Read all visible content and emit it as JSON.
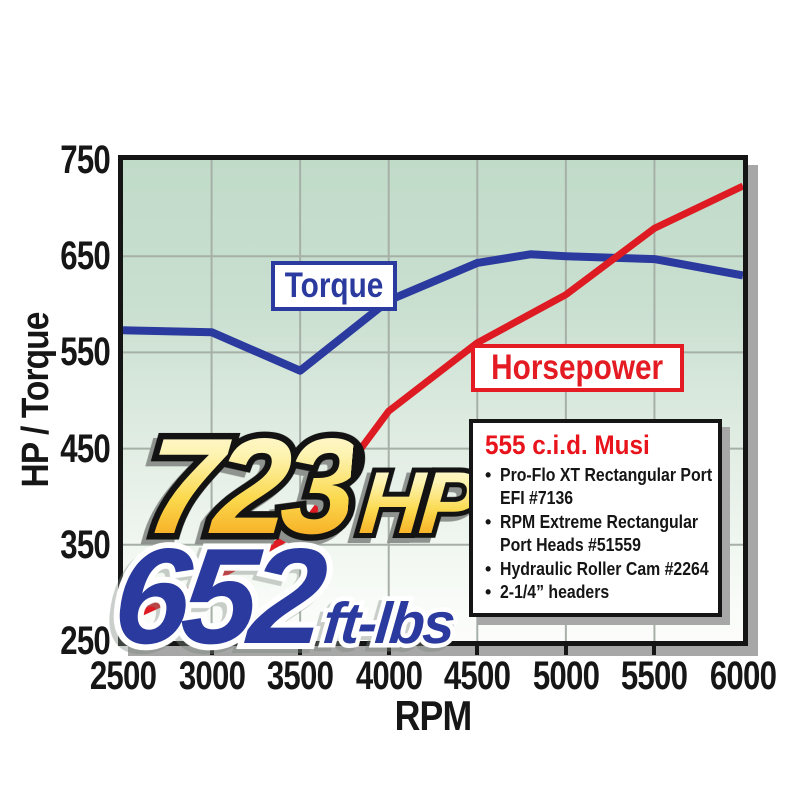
{
  "chart_data": {
    "type": "line",
    "title": "",
    "xlabel": "RPM",
    "ylabel": "HP / Torque",
    "xlim": [
      2500,
      6000
    ],
    "ylim": [
      250,
      750
    ],
    "x_ticks": [
      2500,
      3000,
      3500,
      4000,
      4500,
      5000,
      5500,
      6000
    ],
    "y_ticks": [
      750,
      650,
      550,
      450,
      350,
      250
    ],
    "grid": true,
    "legend_position": "inline-label-boxes",
    "series": [
      {
        "name": "Torque",
        "color": "#2b3a9e",
        "units": "ft-lbs",
        "points": [
          [
            2500,
            573
          ],
          [
            3000,
            571
          ],
          [
            3500,
            531
          ],
          [
            4000,
            604
          ],
          [
            4500,
            643
          ],
          [
            4800,
            652
          ],
          [
            5000,
            650
          ],
          [
            5500,
            647
          ],
          [
            6000,
            630
          ]
        ]
      },
      {
        "name": "Horsepower",
        "color": "#de1a22",
        "units": "HP",
        "points": [
          [
            2500,
            271
          ],
          [
            3000,
            313
          ],
          [
            3500,
            365
          ],
          [
            4000,
            489
          ],
          [
            4500,
            560
          ],
          [
            5000,
            610
          ],
          [
            5500,
            679
          ],
          [
            6000,
            723
          ]
        ]
      }
    ]
  },
  "labels": {
    "torque_box": "Torque",
    "horsepower_box": "Horsepower",
    "rpm_axis": "RPM",
    "y_axis": "HP / Torque"
  },
  "callouts": {
    "hp_value": "723",
    "hp_unit": "HP",
    "torque_value": "652",
    "torque_unit": "ft-lbs"
  },
  "info_box": {
    "title": "555 c.i.d. Musi",
    "bullets": [
      [
        "Pro-Flo XT Rectangular Port",
        "EFI #7136"
      ],
      [
        "RPM Extreme Rectangular",
        "Port Heads #51559"
      ],
      [
        "Hydraulic Roller Cam #2264"
      ],
      [
        "2-1/4” headers"
      ]
    ]
  },
  "colors": {
    "plot_border": "#151515",
    "grid": "#a6b0a7",
    "torque_blue": "#2b3a9e",
    "horsepower_red": "#de1a22",
    "title_red": "#e8131b",
    "shadow_gray": "#a7a7a7",
    "bg_top_green": "#c1dbc9",
    "bg_bottom_white": "#fcfdfb",
    "gold_top": "#fef9dc",
    "gold_bottom": "#f29a17"
  }
}
